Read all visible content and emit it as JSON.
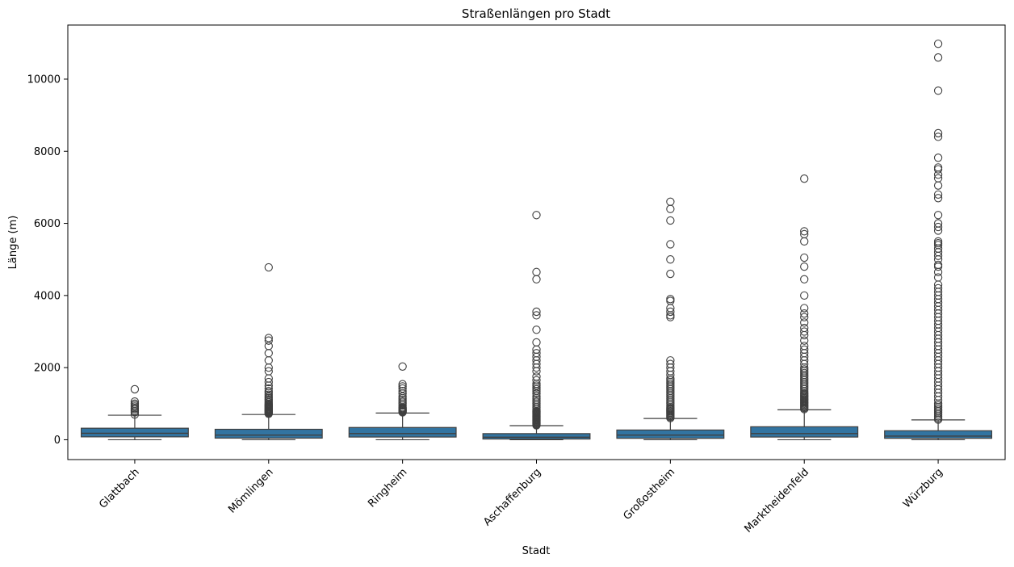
{
  "chart_data": {
    "type": "box",
    "title": "Straßenlängen pro Stadt",
    "xlabel": "Stadt",
    "ylabel": "Länge (m)",
    "ylim": [
      -550,
      11500
    ],
    "yticks": [
      0,
      2000,
      4000,
      6000,
      8000,
      10000
    ],
    "grid": false,
    "box_color": "#3274a1",
    "line_color": "#3f3f3f",
    "categories": [
      "Glattbach",
      "Mömlingen",
      "Ringheim",
      "Aschaffenburg",
      "Großostheim",
      "Marktheidenfeld",
      "Würzburg"
    ],
    "boxes": [
      {
        "whislo": 0,
        "q1": 80,
        "med": 180,
        "q3": 320,
        "whishi": 680,
        "fliers": [
          700,
          760,
          800,
          850,
          880,
          920,
          960,
          1000,
          1060,
          1400
        ]
      },
      {
        "whislo": 0,
        "q1": 45,
        "med": 130,
        "q3": 290,
        "whishi": 700,
        "fliers": [
          720,
          740,
          760,
          780,
          800,
          820,
          840,
          860,
          880,
          900,
          920,
          940,
          960,
          980,
          1000,
          1040,
          1080,
          1120,
          1160,
          1200,
          1250,
          1300,
          1350,
          1420,
          1500,
          1600,
          1700,
          1900,
          2000,
          2200,
          2400,
          2600,
          2750,
          2820,
          4780
        ]
      },
      {
        "whislo": 0,
        "q1": 75,
        "med": 170,
        "q3": 340,
        "whishi": 740,
        "fliers": [
          760,
          780,
          800,
          820,
          840,
          860,
          880,
          900,
          950,
          1000,
          1050,
          1100,
          1150,
          1200,
          1280,
          1350,
          1420,
          1480,
          1540,
          2030
        ]
      },
      {
        "whislo": 0,
        "q1": 20,
        "med": 70,
        "q3": 170,
        "whishi": 390,
        "fliers": [
          400,
          420,
          440,
          460,
          480,
          500,
          520,
          540,
          560,
          580,
          600,
          620,
          640,
          660,
          680,
          700,
          720,
          740,
          760,
          780,
          800,
          850,
          900,
          950,
          1000,
          1050,
          1100,
          1150,
          1200,
          1280,
          1350,
          1400,
          1450,
          1500,
          1550,
          1650,
          1750,
          1900,
          2000,
          2100,
          2200,
          2300,
          2400,
          2500,
          2700,
          3050,
          3450,
          3550,
          4450,
          4650,
          6230
        ]
      },
      {
        "whislo": 0,
        "q1": 40,
        "med": 130,
        "q3": 270,
        "whishi": 590,
        "fliers": [
          600,
          630,
          660,
          690,
          720,
          750,
          780,
          810,
          840,
          870,
          900,
          950,
          1000,
          1050,
          1100,
          1150,
          1200,
          1250,
          1300,
          1350,
          1400,
          1450,
          1500,
          1550,
          1600,
          1650,
          1700,
          1800,
          1900,
          2000,
          2100,
          2200,
          3400,
          3450,
          3550,
          3650,
          3850,
          3900,
          4600,
          5000,
          5420,
          6080,
          6400,
          6600
        ]
      },
      {
        "whislo": 0,
        "q1": 75,
        "med": 170,
        "q3": 360,
        "whishi": 830,
        "fliers": [
          850,
          880,
          910,
          940,
          970,
          1000,
          1030,
          1060,
          1090,
          1120,
          1150,
          1180,
          1210,
          1240,
          1270,
          1300,
          1350,
          1400,
          1450,
          1500,
          1550,
          1600,
          1650,
          1700,
          1750,
          1800,
          1850,
          1900,
          1950,
          2000,
          2100,
          2200,
          2300,
          2400,
          2500,
          2600,
          2750,
          2900,
          3000,
          3100,
          3250,
          3400,
          3500,
          3650,
          4000,
          4450,
          4800,
          5050,
          5500,
          5700,
          5780,
          7240
        ]
      },
      {
        "whislo": 0,
        "q1": 40,
        "med": 100,
        "q3": 250,
        "whishi": 550,
        "fliers": [
          560,
          600,
          650,
          700,
          750,
          800,
          850,
          900,
          950,
          1000,
          1100,
          1200,
          1300,
          1400,
          1500,
          1600,
          1700,
          1800,
          1900,
          2000,
          2100,
          2200,
          2300,
          2400,
          2500,
          2600,
          2700,
          2800,
          2900,
          3000,
          3100,
          3200,
          3300,
          3400,
          3500,
          3600,
          3700,
          3800,
          3900,
          4000,
          4100,
          4200,
          4300,
          4500,
          4650,
          4800,
          4850,
          5000,
          5100,
          5200,
          5300,
          5400,
          5450,
          5500,
          5800,
          5900,
          6000,
          6230,
          6700,
          6800,
          7050,
          7250,
          7350,
          7500,
          7550,
          7820,
          8400,
          8500,
          9680,
          10600,
          10980
        ]
      }
    ]
  }
}
